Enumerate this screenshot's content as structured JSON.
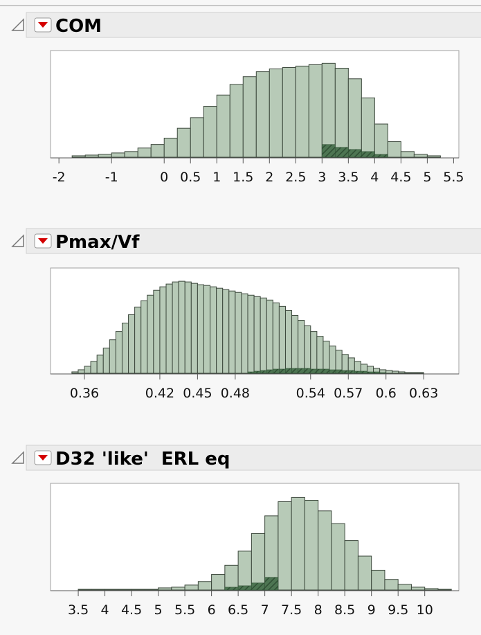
{
  "chart_data": [
    {
      "type": "histogram",
      "title": "COM",
      "color": "#b7cab7",
      "highlight_color": "#4d7552",
      "bins": [
        -1.75,
        -1.5,
        -1.25,
        -1,
        -0.75,
        -0.5,
        -0.25,
        0,
        0.25,
        0.5,
        0.75,
        1,
        1.25,
        1.5,
        1.75,
        2,
        2.25,
        2.5,
        2.75,
        3,
        3.25,
        3.5,
        3.75,
        4,
        4.25,
        4.5,
        4.75,
        5,
        5.25
      ],
      "values": [
        2,
        3,
        4,
        6,
        8,
        13,
        18,
        27,
        41,
        56,
        72,
        88,
        103,
        114,
        121,
        125,
        127,
        129,
        131,
        133,
        126,
        111,
        84,
        47,
        22,
        8,
        4,
        2
      ],
      "highlight": [
        0,
        0,
        0,
        0,
        0,
        0,
        0,
        0,
        0,
        0,
        0,
        0,
        0,
        0,
        0,
        0,
        0,
        0,
        0,
        18,
        14,
        11,
        8,
        4,
        0,
        0,
        0,
        0
      ],
      "xlim": [
        -2.16,
        5.6
      ],
      "xticks": [
        -2,
        -1,
        0,
        0.5,
        1,
        1.5,
        2,
        2.5,
        3,
        3.5,
        4,
        4.5,
        5,
        5.5
      ],
      "ylim": [
        0,
        150
      ]
    },
    {
      "type": "histogram",
      "title": "Pmax/Vf",
      "color": "#b7cab7",
      "highlight_color": "#4d7552",
      "bins": [
        0.35,
        0.355,
        0.36,
        0.365,
        0.37,
        0.375,
        0.38,
        0.385,
        0.39,
        0.395,
        0.4,
        0.405,
        0.41,
        0.415,
        0.42,
        0.425,
        0.43,
        0.435,
        0.44,
        0.445,
        0.45,
        0.455,
        0.46,
        0.465,
        0.47,
        0.475,
        0.48,
        0.485,
        0.49,
        0.495,
        0.5,
        0.505,
        0.51,
        0.515,
        0.52,
        0.525,
        0.53,
        0.535,
        0.54,
        0.545,
        0.55,
        0.555,
        0.56,
        0.565,
        0.57,
        0.575,
        0.58,
        0.585,
        0.59,
        0.595,
        0.6,
        0.605,
        0.61,
        0.615,
        0.62,
        0.625,
        0.63,
        0.635,
        0.64
      ],
      "values": [
        2,
        5,
        10,
        17,
        26,
        36,
        48,
        60,
        72,
        84,
        95,
        104,
        112,
        119,
        124,
        128,
        131,
        132,
        131,
        129,
        127,
        126,
        124,
        122,
        120,
        118,
        116,
        114,
        112,
        110,
        108,
        105,
        101,
        96,
        90,
        83,
        76,
        68,
        60,
        53,
        46,
        39,
        33,
        27,
        22,
        17,
        13,
        10,
        7,
        5,
        4,
        3,
        2,
        1,
        1,
        1,
        0,
        0
      ],
      "highlight": [
        0,
        0,
        0,
        0,
        0,
        0,
        0,
        0,
        0,
        0,
        0,
        0,
        0,
        0,
        0,
        0,
        0,
        0,
        0,
        0,
        0,
        0,
        0,
        0,
        0,
        0,
        0,
        0,
        2,
        3,
        4,
        5,
        6,
        6,
        7,
        7,
        7,
        7,
        6,
        6,
        6,
        5,
        5,
        4,
        4,
        3,
        3,
        2,
        2,
        1,
        0,
        0,
        0,
        0,
        0,
        0,
        0,
        0
      ],
      "xlim": [
        0.333,
        0.658
      ],
      "xticks": [
        0.36,
        0.42,
        0.45,
        0.48,
        0.54,
        0.57,
        0.6,
        0.63
      ],
      "ylim": [
        0,
        150
      ]
    },
    {
      "type": "histogram",
      "title": "D32 'like'  ERL eq",
      "color": "#b7cab7",
      "highlight_color": "#4d7552",
      "bins": [
        3.5,
        3.75,
        4,
        4.25,
        4.5,
        4.75,
        5,
        5.25,
        5.5,
        5.75,
        6,
        6.25,
        6.5,
        6.75,
        7,
        7.25,
        7.5,
        7.75,
        8,
        8.25,
        8.5,
        8.75,
        9,
        9.25,
        9.5,
        9.75,
        10,
        10.25,
        10.5
      ],
      "values": [
        1,
        1,
        1,
        1,
        1,
        1,
        3,
        4,
        7,
        12,
        22,
        35,
        55,
        80,
        105,
        125,
        131,
        127,
        112,
        94,
        70,
        48,
        28,
        15,
        8,
        4,
        2,
        1
      ],
      "highlight": [
        0,
        0,
        0,
        0,
        0,
        0,
        0,
        0,
        0,
        0,
        0,
        4,
        6,
        10,
        18,
        0,
        0,
        0,
        0,
        0,
        0,
        0,
        0,
        0,
        0,
        0,
        0,
        0
      ],
      "xlim": [
        2.98,
        10.64
      ],
      "xticks": [
        3.5,
        4,
        4.5,
        5,
        5.5,
        6,
        6.5,
        7,
        7.5,
        8,
        8.5,
        9,
        9.5,
        10
      ],
      "ylim": [
        0,
        150
      ]
    }
  ]
}
